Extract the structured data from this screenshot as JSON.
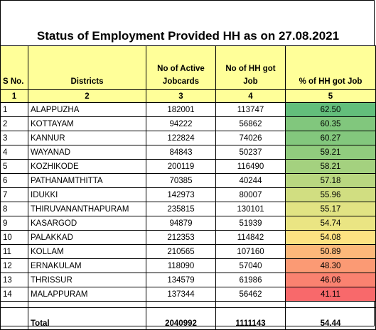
{
  "title": "Status of Employment Provided HH as on 27.08.2021",
  "headers": {
    "sno": "S No.",
    "districts": "Districts",
    "active_line1": "No of Active",
    "active_line2": "Jobcards",
    "hh_line1": "No of HH got",
    "hh_line2": "Job",
    "pct": "% of HH got Job"
  },
  "column_numbers": [
    "1",
    "2",
    "3",
    "4",
    "5"
  ],
  "rows": [
    {
      "sno": "1",
      "district": "ALAPPUZHA",
      "active": "182001",
      "hh": "113747",
      "pct": "62.50",
      "color": "#63be7b"
    },
    {
      "sno": "2",
      "district": "KOTTAYAM",
      "active": "94222",
      "hh": "56862",
      "pct": "60.35",
      "color": "#81c77d"
    },
    {
      "sno": "3",
      "district": "KANNUR",
      "active": "122824",
      "hh": "74026",
      "pct": "60.27",
      "color": "#83c77d"
    },
    {
      "sno": "4",
      "district": "WAYANAD",
      "active": "84843",
      "hh": "50237",
      "pct": "59.21",
      "color": "#91cc7e"
    },
    {
      "sno": "5",
      "district": "KOZHIKODE",
      "active": "200119",
      "hh": "116490",
      "pct": "58.21",
      "color": "#a4d17f"
    },
    {
      "sno": "6",
      "district": "PATHANAMTHITTA",
      "active": "70385",
      "hh": "40244",
      "pct": "57.18",
      "color": "#b9d780"
    },
    {
      "sno": "7",
      "district": "IDUKKI",
      "active": "142973",
      "hh": "80007",
      "pct": "55.96",
      "color": "#d1de81"
    },
    {
      "sno": "8",
      "district": "THIRUVANANTHAPURAM",
      "active": "235815",
      "hh": "130101",
      "pct": "55.17",
      "color": "#e1e383"
    },
    {
      "sno": "9",
      "district": "KASARGOD",
      "active": "94879",
      "hh": "51939",
      "pct": "54.74",
      "color": "#eae583"
    },
    {
      "sno": "10",
      "district": "PALAKKAD",
      "active": "212353",
      "hh": "114842",
      "pct": "54.08",
      "color": "#fde282"
    },
    {
      "sno": "11",
      "district": "KOLLAM",
      "active": "210565",
      "hh": "107160",
      "pct": "50.89",
      "color": "#fcb87a"
    },
    {
      "sno": "12",
      "district": "ERNAKULAM",
      "active": "118090",
      "hh": "57040",
      "pct": "48.30",
      "color": "#fb9a74"
    },
    {
      "sno": "13",
      "district": "THRISSUR",
      "active": "134579",
      "hh": "61986",
      "pct": "46.06",
      "color": "#fa8270"
    },
    {
      "sno": "14",
      "district": "MALAPPURAM",
      "active": "137344",
      "hh": "56462",
      "pct": "41.11",
      "color": "#f8696b"
    }
  ],
  "total": {
    "label": "Total",
    "active": "2040992",
    "hh": "1111143",
    "pct": "54.44"
  }
}
